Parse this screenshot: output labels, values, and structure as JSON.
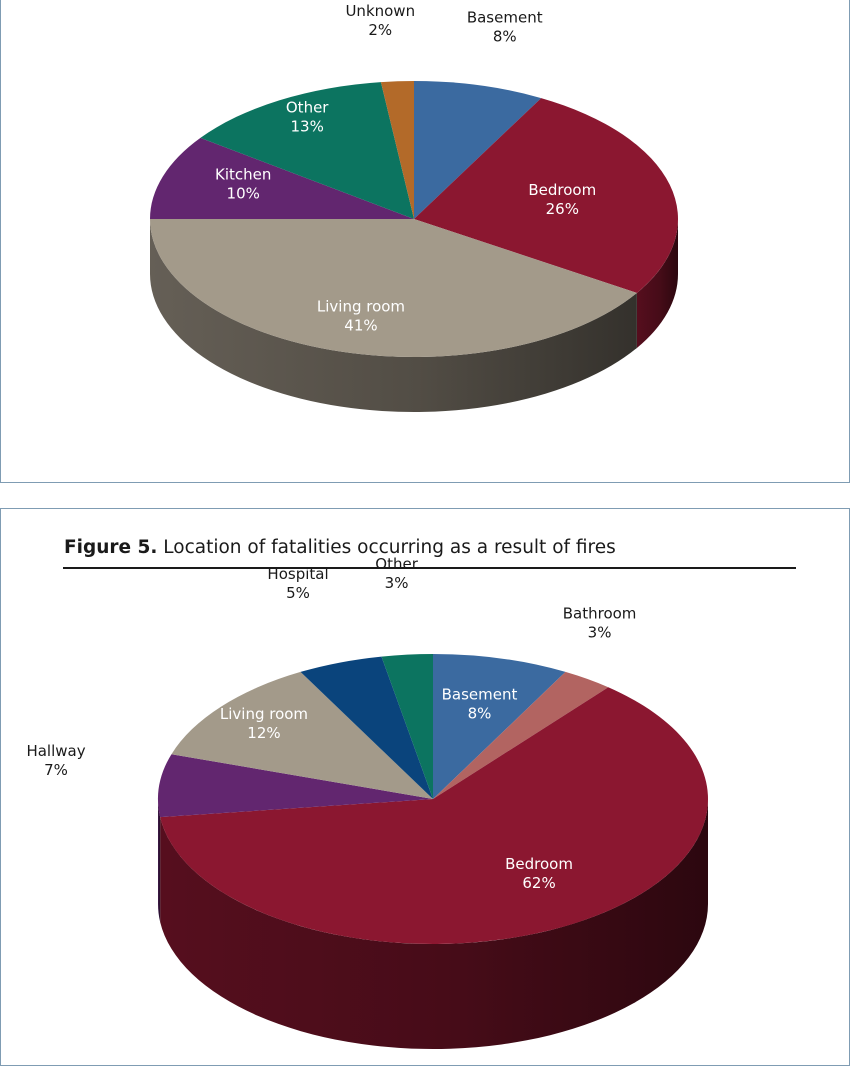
{
  "charts": {
    "top": {
      "title": "",
      "slices": [
        {
          "name": "Basement",
          "value": "8%",
          "color": "#3b6aa0"
        },
        {
          "name": "Bedroom",
          "value": "26%",
          "color": "#8b1730"
        },
        {
          "name": "Living room",
          "value": "41%",
          "color": "#a39a8a"
        },
        {
          "name": "Kitchen",
          "value": "10%",
          "color": "#62266f"
        },
        {
          "name": "Other",
          "value": "13%",
          "color": "#0c7460"
        },
        {
          "name": "Unknown",
          "value": "2%",
          "color": "#b36a29"
        }
      ]
    },
    "bottom": {
      "title_bold": "Figure 5.",
      "title_rest": " Location of fatalities occurring as a result of fires",
      "slices": [
        {
          "name": "Basement",
          "value": "8%",
          "color": "#3b6aa0"
        },
        {
          "name": "Bathroom",
          "value": "3%",
          "color": "#b26461"
        },
        {
          "name": "Bedroom",
          "value": "62%",
          "color": "#8b1730"
        },
        {
          "name": "Hallway",
          "value": "7%",
          "color": "#62266f"
        },
        {
          "name": "Living room",
          "value": "12%",
          "color": "#a39a8a"
        },
        {
          "name": "Hospital",
          "value": "5%",
          "color": "#0a447c"
        },
        {
          "name": "Other",
          "value": "3%",
          "color": "#0c7460"
        }
      ]
    }
  },
  "chart_data": [
    {
      "type": "pie",
      "title": "",
      "categories": [
        "Basement",
        "Bedroom",
        "Living room",
        "Kitchen",
        "Other",
        "Unknown"
      ],
      "values": [
        8,
        26,
        41,
        10,
        13,
        2
      ]
    },
    {
      "type": "pie",
      "title": "Figure 5. Location of fatalities occurring as a result of fires",
      "categories": [
        "Basement",
        "Bathroom",
        "Bedroom",
        "Hallway",
        "Living room",
        "Hospital",
        "Other"
      ],
      "values": [
        8,
        3,
        62,
        7,
        12,
        5,
        3
      ]
    }
  ]
}
